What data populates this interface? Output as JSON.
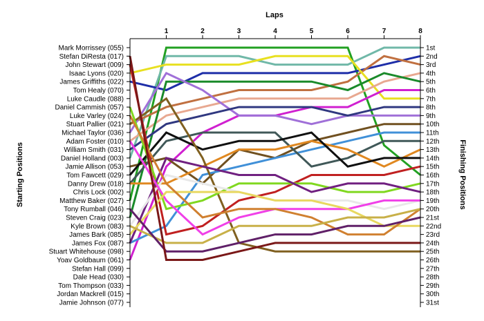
{
  "chart_data": {
    "type": "line",
    "title": "",
    "xlabel": "Laps",
    "ylabel_left": "Starting Positions",
    "ylabel_right": "Finishing Positions",
    "x": [
      0,
      1,
      2,
      3,
      4,
      5,
      6,
      7,
      8
    ],
    "x_tick_labels": [
      "1",
      "2",
      "3",
      "4",
      "5",
      "6",
      "7",
      "8"
    ],
    "ylim": [
      1,
      31
    ],
    "y_reversed": true,
    "grid": false,
    "starting_positions": [
      "Mark Morrissey (055)",
      "Stefan DiResta (017)",
      "John Stewart (009)",
      "Isaac Lyons (020)",
      "James Griffiths (022)",
      "Tom Healy (070)",
      "Luke Caudle (088)",
      "Daniel Cammish (057)",
      "Luke Varley (024)",
      "Stuart Pallier (021)",
      "Michael Taylor (036)",
      "Adam Foster (010)",
      "William Smith (031)",
      "Daniel Holland (003)",
      "Jamie Allison (053)",
      "Tom Fawcett (029)",
      "Danny Drew (018)",
      "Chris Lock (002)",
      "Matthew Baker (027)",
      "Tony Rumball (046)",
      "Steven Craig (023)",
      "Kyle Brown (083)",
      "James Bark (085)",
      "James Fox (087)",
      "Stuart Whitehouse (098)",
      "Yoav Goldbaum (061)",
      "Stefan Hall (099)",
      "Dale Head (030)",
      "Tom Thompson (033)",
      "Jordan Mackrell (015)",
      "Jamie Johnson (077)"
    ],
    "finishing_positions": [
      "1st",
      "2nd",
      "3rd",
      "4th",
      "5th",
      "6th",
      "7th",
      "8th",
      "9th",
      "10th",
      "11th",
      "12th",
      "13th",
      "14th",
      "15th",
      "16th",
      "17th",
      "18th",
      "19th",
      "20th",
      "21st",
      "22nd",
      "23rd",
      "24th",
      "25th",
      "26th",
      "27th",
      "28th",
      "29th",
      "30th",
      "31st"
    ],
    "series": [
      {
        "color": "#22a022",
        "values": [
          19,
          1,
          1,
          1,
          1,
          1,
          1,
          12.5,
          16
        ]
      },
      {
        "color": "#70b8a8",
        "values": [
          14,
          2,
          2,
          2,
          3,
          3,
          3,
          1,
          1
        ]
      },
      {
        "color": "#1e2ea8",
        "values": [
          5,
          6,
          4,
          4,
          4,
          4,
          4,
          3,
          2
        ]
      },
      {
        "color": "#c07040",
        "values": [
          10,
          8,
          7,
          6,
          6,
          6,
          5,
          2,
          3
        ]
      },
      {
        "color": "#e8e020",
        "values": [
          4,
          3,
          3,
          3,
          2,
          2,
          2,
          7,
          7
        ]
      },
      {
        "color": "#e8a890",
        "values": [
          12,
          9,
          8,
          7,
          7,
          7,
          7,
          5,
          4
        ]
      },
      {
        "color": "#1a8a2a",
        "values": [
          21,
          5,
          5,
          5,
          5,
          5,
          6,
          4,
          5
        ]
      },
      {
        "color": "#d020d0",
        "values": [
          26,
          15,
          11,
          9,
          9,
          8,
          8,
          6,
          6
        ]
      },
      {
        "color": "#a070d8",
        "values": [
          11,
          4,
          6,
          9,
          9,
          10,
          9,
          9,
          9
        ]
      },
      {
        "color": "#303880",
        "values": [
          13,
          10,
          9,
          8,
          8,
          8,
          9,
          8,
          8
        ]
      },
      {
        "color": "#705020",
        "values": [
          15,
          14,
          17,
          13,
          14,
          12,
          11,
          10,
          10
        ]
      },
      {
        "color": "#4090d8",
        "values": [
          24,
          22,
          16,
          15,
          14,
          13,
          12,
          11,
          11
        ]
      },
      {
        "color": "#405858",
        "values": [
          17,
          12,
          11,
          11,
          11,
          15,
          14,
          12,
          12
        ]
      },
      {
        "color": "#e08820",
        "values": [
          17,
          17,
          15,
          13,
          13,
          12,
          13,
          15,
          13
        ]
      },
      {
        "color": "#101010",
        "values": [
          16,
          11,
          13,
          12,
          12,
          11,
          15,
          14,
          14
        ]
      },
      {
        "color": "#c02020",
        "values": [
          3,
          23,
          22,
          19,
          18,
          16,
          16,
          16,
          15
        ]
      },
      {
        "color": "#806020",
        "values": [
          10,
          7,
          14,
          24,
          25,
          25,
          25,
          25,
          25
        ]
      },
      {
        "color": "#80d820",
        "values": [
          8,
          20,
          19,
          17,
          17,
          17,
          18,
          18,
          17
        ]
      },
      {
        "color": "#702080",
        "values": [
          24,
          14,
          15,
          16,
          16,
          18,
          17,
          17,
          18
        ]
      },
      {
        "color": "#e8e8e8",
        "values": [
          22,
          16,
          17,
          18,
          19,
          19,
          19,
          20,
          19
        ]
      },
      {
        "color": "#f040e8",
        "values": [
          12,
          19,
          23,
          21,
          20,
          20,
          20,
          19,
          19
        ]
      },
      {
        "color": "#e8d860",
        "values": [
          23,
          18,
          18,
          18,
          19,
          19,
          20,
          22,
          22
        ]
      },
      {
        "color": "#d08030",
        "values": [
          9,
          17,
          21,
          20,
          20,
          21,
          23,
          23,
          20
        ]
      },
      {
        "color": "#c8b048",
        "values": [
          22,
          24,
          24,
          22,
          22,
          22,
          21,
          21,
          20
        ]
      },
      {
        "color": "#602068",
        "values": [
          20,
          25,
          25,
          24,
          23,
          23,
          22,
          22,
          21
        ]
      },
      {
        "color": "#7a1818",
        "values": [
          2,
          26,
          26,
          25,
          24,
          24,
          24,
          24,
          24
        ]
      }
    ]
  }
}
